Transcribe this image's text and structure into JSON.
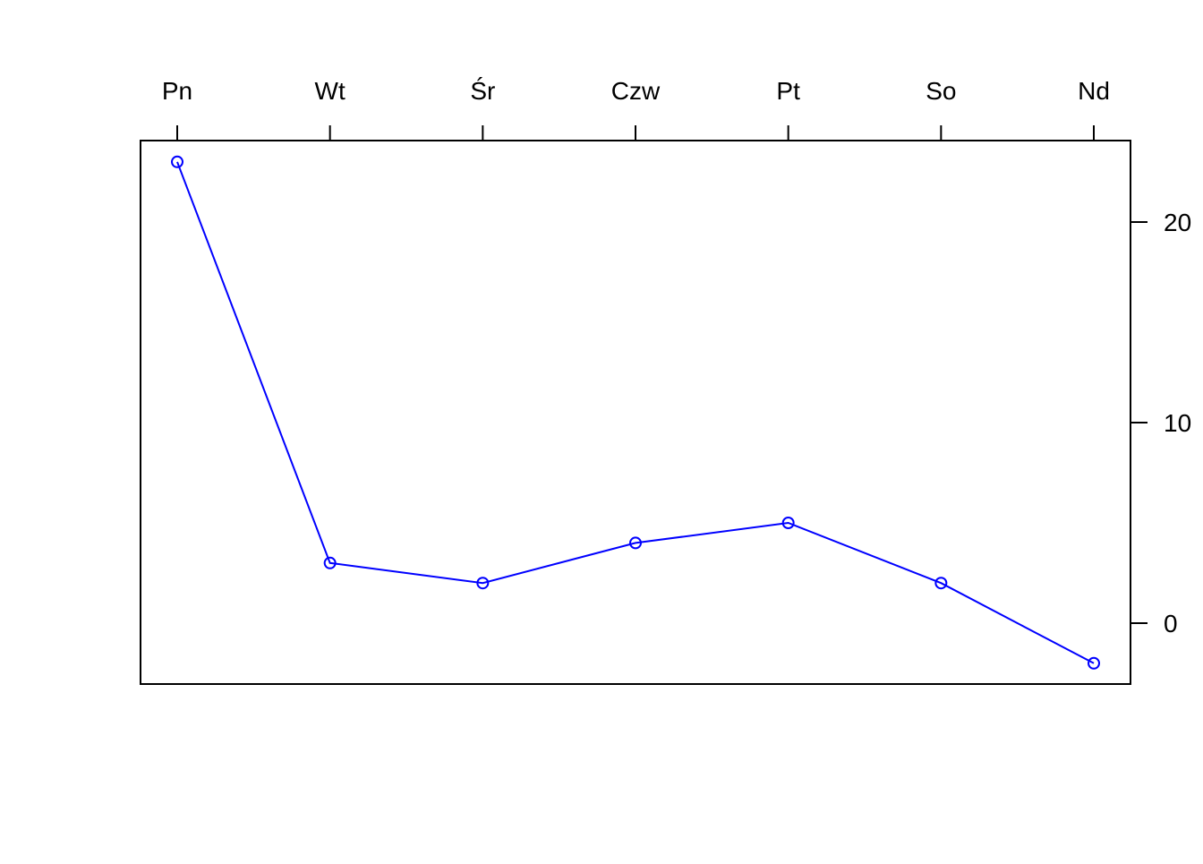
{
  "chart_data": {
    "type": "line",
    "categories": [
      "Pn",
      "Wt",
      "Śr",
      "Czw",
      "Pt",
      "So",
      "Nd"
    ],
    "series": [
      {
        "values": [
          23,
          3,
          2,
          4,
          5,
          2,
          -2
        ],
        "color": "#0000FF",
        "marker": "open-circle"
      }
    ],
    "y_ticks": [
      0,
      10,
      20
    ],
    "ylim": [
      -3,
      24
    ],
    "x_axis_position": "top",
    "y_axis_position": "right",
    "grid": false,
    "legend": "none",
    "title": "",
    "xlabel": "",
    "ylabel": ""
  }
}
